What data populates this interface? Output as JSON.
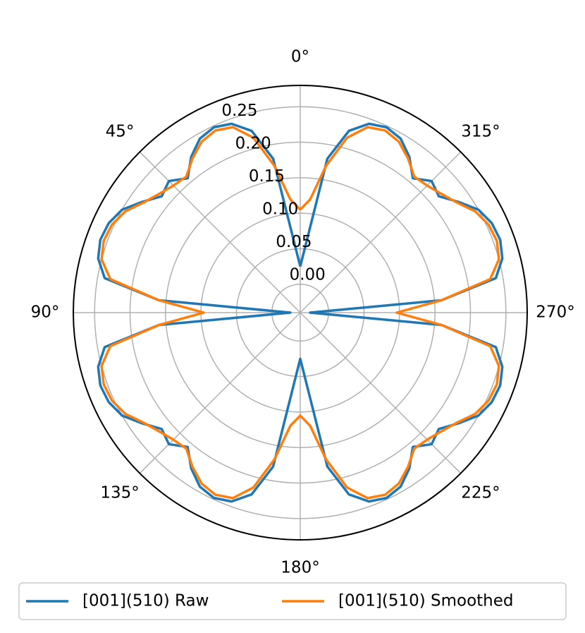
{
  "chart_data": {
    "type": "polar",
    "theta": [
      0,
      5,
      10,
      15,
      20,
      25,
      30,
      35,
      40,
      45,
      50,
      55,
      60,
      65,
      70,
      75,
      80,
      85,
      90,
      95,
      100,
      105,
      110,
      115,
      120,
      125,
      130,
      135,
      140,
      145,
      150,
      155,
      160,
      165,
      170,
      175,
      180,
      185,
      190,
      195,
      200,
      205,
      210,
      215,
      220,
      225,
      230,
      235,
      240,
      245,
      250,
      255,
      260,
      265,
      270,
      275,
      280,
      285,
      290,
      295,
      300,
      305,
      310,
      315,
      320,
      325,
      330,
      335,
      340,
      345,
      350,
      355,
      360
    ],
    "series": [
      {
        "name": "[001](510) Raw",
        "color": "#1f77b4",
        "values": [
          0.025,
          0.06,
          0.18,
          0.225,
          0.243,
          0.248,
          0.243,
          0.228,
          0.207,
          0.222,
          0.215,
          0.232,
          0.25,
          0.258,
          0.26,
          0.255,
          0.24,
          0.16,
          -0.026,
          0.16,
          0.24,
          0.255,
          0.26,
          0.258,
          0.25,
          0.232,
          0.215,
          0.222,
          0.207,
          0.228,
          0.243,
          0.248,
          0.243,
          0.225,
          0.18,
          0.06,
          0.025,
          0.06,
          0.18,
          0.225,
          0.243,
          0.248,
          0.243,
          0.228,
          0.207,
          0.222,
          0.215,
          0.232,
          0.25,
          0.258,
          0.26,
          0.255,
          0.24,
          0.16,
          -0.026,
          0.16,
          0.24,
          0.255,
          0.26,
          0.258,
          0.25,
          0.232,
          0.215,
          0.222,
          0.207,
          0.228,
          0.243,
          0.248,
          0.243,
          0.225,
          0.18,
          0.06,
          0.025
        ]
      },
      {
        "name": "[001](510) Smoothed",
        "color": "#ff7f0e",
        "values": [
          0.105,
          0.12,
          0.17,
          0.215,
          0.238,
          0.243,
          0.238,
          0.225,
          0.21,
          0.213,
          0.22,
          0.23,
          0.245,
          0.253,
          0.255,
          0.25,
          0.232,
          0.16,
          0.096,
          0.16,
          0.232,
          0.25,
          0.255,
          0.253,
          0.245,
          0.23,
          0.22,
          0.213,
          0.21,
          0.225,
          0.238,
          0.243,
          0.238,
          0.215,
          0.17,
          0.12,
          0.105,
          0.12,
          0.17,
          0.215,
          0.238,
          0.243,
          0.238,
          0.225,
          0.21,
          0.213,
          0.22,
          0.23,
          0.245,
          0.253,
          0.255,
          0.25,
          0.232,
          0.16,
          0.096,
          0.16,
          0.232,
          0.25,
          0.255,
          0.253,
          0.245,
          0.23,
          0.22,
          0.213,
          0.21,
          0.225,
          0.238,
          0.243,
          0.238,
          0.215,
          0.17,
          0.12,
          0.105
        ]
      }
    ],
    "ylim": [
      -0.04,
      0.28
    ],
    "yticks": [
      {
        "value": 0,
        "label": "0.00"
      },
      0.05,
      {
        "value": 0.1,
        "label": "0.10"
      },
      0.15,
      {
        "value": 0.2,
        "label": "0.20"
      },
      0.25
    ],
    "thetaticks": [
      {
        "value": 0,
        "label": "0°"
      },
      {
        "value": 45,
        "label": "45°"
      },
      {
        "value": 90,
        "label": "90°"
      },
      {
        "value": 135,
        "label": "135°"
      },
      {
        "value": 180,
        "label": "180°"
      },
      {
        "value": 225,
        "label": "225°"
      },
      {
        "value": 270,
        "label": "270°"
      },
      {
        "value": 315,
        "label": "315°"
      }
    ],
    "grid": true,
    "legend": "bottom"
  }
}
